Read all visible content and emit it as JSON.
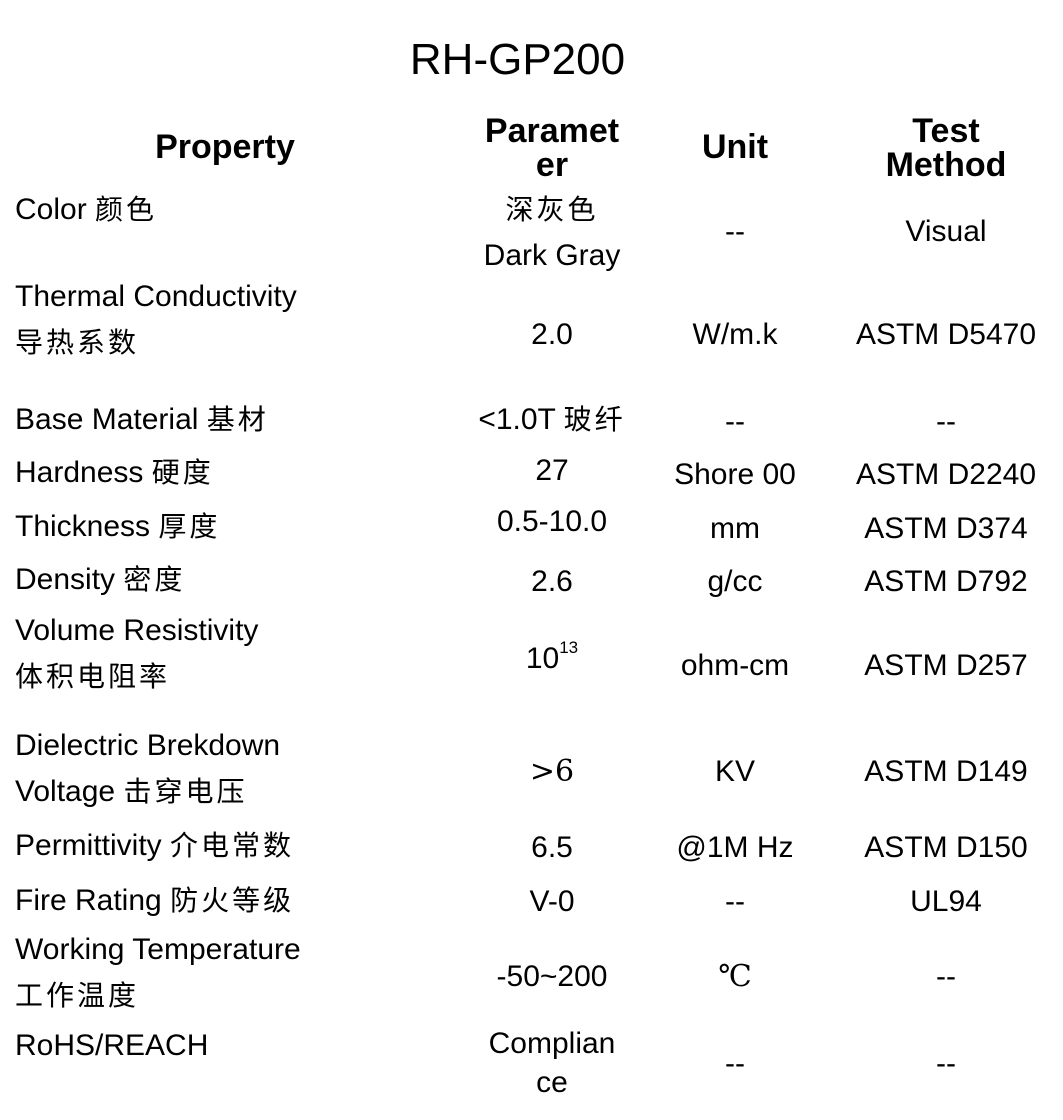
{
  "title": "RH-GP200",
  "headers": {
    "property": "Property",
    "parameter_l1": "Paramet",
    "parameter_l2": "er",
    "unit": "Unit",
    "method_l1": "Test",
    "method_l2": "Method"
  },
  "rows": [
    {
      "prop_en": "Color",
      "prop_cn": "颜色",
      "param_cn": "深灰色",
      "param": "Dark Gray",
      "unit": "--",
      "method": "Visual"
    },
    {
      "prop_en": "Thermal Conductivity",
      "prop_cn": "导热系数",
      "param": "2.0",
      "unit": "W/m.k",
      "method": "ASTM D5470"
    },
    {
      "prop_en": "Base Material",
      "prop_cn": "基材",
      "param": "<1.0T",
      "param_cn": "玻纤",
      "unit": "--",
      "method": "--"
    },
    {
      "prop_en": "Hardness",
      "prop_cn": "硬度",
      "param": "27",
      "unit": "Shore 00",
      "method": "ASTM D2240"
    },
    {
      "prop_en": "Thickness",
      "prop_cn": "厚度",
      "param": "0.5-10.0",
      "unit": "mm",
      "method": "ASTM D374"
    },
    {
      "prop_en": "Density",
      "prop_cn": "密度",
      "param": "2.6",
      "unit": "g/cc",
      "method": "ASTM D792"
    },
    {
      "prop_en": "Volume Resistivity",
      "prop_cn": "体积电阻率",
      "param_base": "10",
      "param_exp": "13",
      "unit": "ohm-cm",
      "method": "ASTM D257"
    },
    {
      "prop_en_l1": "Dielectric Brekdown",
      "prop_en_l2": "Voltage",
      "prop_cn": "击穿电压",
      "param": ">6",
      "unit": "KV",
      "method": "ASTM D149"
    },
    {
      "prop_en": "Permittivity",
      "prop_cn": "介电常数",
      "param": "6.5",
      "unit": "@1M Hz",
      "method": "ASTM D150"
    },
    {
      "prop_en": "Fire Rating",
      "prop_cn": "防火等级",
      "param": "V-0",
      "unit": "--",
      "method": "UL94"
    },
    {
      "prop_en": "Working Temperature",
      "prop_cn": "工作温度",
      "param": "-50~200",
      "unit": "℃",
      "method": "--"
    },
    {
      "prop_en": "RoHS/REACH",
      "param_l1": "Complian",
      "param_l2": "ce",
      "unit": "--",
      "method": "--"
    }
  ]
}
